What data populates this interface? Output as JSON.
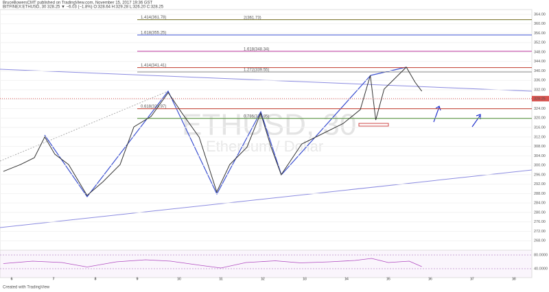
{
  "header": {
    "publisher": "BruceBowersCMT published on TradingView.com, November 15, 2017 19:36 GST",
    "symbol": "BITFINEX:ETHUSD, 30  328.25 ▼ −6.03 (−1.8%)  O:328.64 H:329.28 L:326.20 C:328.25",
    "watermark": "ETHUSD, 30",
    "watermark_sub": "Ethereum / Dollar"
  },
  "footer": "Created with TradingView",
  "chart_data": {
    "type": "line",
    "x": [
      5.8,
      6.21,
      6.54,
      6.79,
      7.03,
      7.36,
      7.8,
      8.18,
      8.59,
      8.92,
      9.33,
      9.74,
      10.07,
      10.48,
      10.9,
      11.21,
      11.62,
      11.95,
      12.2,
      12.44,
      12.93,
      13.43,
      13.92,
      14.33,
      14.57,
      14.7,
      14.9,
      15.23,
      15.43,
      15.64,
      15.8
    ],
    "series": [
      {
        "name": "ETHUSD",
        "color": "#333333",
        "values": [
          297.4,
          300.3,
          303.2,
          312,
          304.7,
          300.3,
          287.2,
          293,
          300.3,
          316.3,
          320.7,
          330.8,
          322.1,
          311.9,
          288.7,
          300.3,
          307.6,
          322.1,
          307.6,
          296,
          309,
          313.4,
          317.7,
          323.6,
          338.1,
          319.2,
          332.3,
          338.1,
          341.6,
          335.2,
          331.4
        ]
      }
    ],
    "xlim": [
      5.72,
      18.43
    ],
    "xticks": [
      6,
      7,
      8,
      9,
      10,
      11,
      12,
      13,
      14,
      15,
      16,
      17,
      18
    ],
    "ylim": [
      264,
      366
    ],
    "yticks": [
      {
        "value": 268,
        "label": "268.00"
      },
      {
        "value": 272,
        "label": "272.00"
      },
      {
        "value": 276,
        "label": "276.00"
      },
      {
        "value": 280,
        "label": "280.00"
      },
      {
        "value": 284,
        "label": "284.00"
      },
      {
        "value": 288,
        "label": "288.00"
      },
      {
        "value": 292,
        "label": "292.00"
      },
      {
        "value": 296,
        "label": "296.00"
      },
      {
        "value": 300,
        "label": "300.00"
      },
      {
        "value": 304,
        "label": "304.00"
      },
      {
        "value": 308,
        "label": "308.00"
      },
      {
        "value": 312,
        "label": "312.00"
      },
      {
        "value": 316,
        "label": "316.00"
      },
      {
        "value": 320,
        "label": "320.00"
      },
      {
        "value": 324,
        "label": "324.00"
      },
      {
        "value": 328,
        "label": "328.00"
      },
      {
        "value": 332,
        "label": "332.00"
      },
      {
        "value": 336,
        "label": "336.00"
      },
      {
        "value": 340,
        "label": "340.00"
      },
      {
        "value": 344,
        "label": "344.00"
      },
      {
        "value": 348,
        "label": "348.00"
      },
      {
        "value": 352,
        "label": "352.00"
      },
      {
        "value": 356,
        "label": "356.00"
      },
      {
        "value": 360,
        "label": "360.00"
      },
      {
        "value": 364,
        "label": "364.00"
      }
    ],
    "last_price": 328.25,
    "last_color": "#d9534f",
    "levels": [
      {
        "label": "1.414(361.78)",
        "value": 361.78,
        "color": "#c0392b"
      },
      {
        "label": "2(361.73)",
        "value": 361.73,
        "color": "#7a9a50"
      },
      {
        "label": "1.618(355.25)",
        "value": 355.25,
        "color": "#3a4fd0"
      },
      {
        "label": "1.618(348.34)",
        "value": 348.34,
        "color": "#c03aa0"
      },
      {
        "label": "1.414(341.41)",
        "value": 341.41,
        "color": "#c0392b"
      },
      {
        "label": "1.272(339.55)",
        "value": 339.55,
        "color": "#888888"
      },
      {
        "label": "0.618(323.97)",
        "value": 323.97,
        "color": "#c0392b"
      },
      {
        "label": "0.786(319.85)",
        "value": 319.85,
        "color": "#4a8a30"
      }
    ],
    "rsi": {
      "color": "#b04ac0",
      "x": [
        5.8,
        6.5,
        7.2,
        7.8,
        8.5,
        9.2,
        9.8,
        10.5,
        11.0,
        11.6,
        12.3,
        12.9,
        13.6,
        14.2,
        14.6,
        15.0,
        15.5,
        15.8
      ],
      "values": [
        55,
        62,
        58,
        45,
        60,
        66,
        62,
        50,
        42,
        58,
        63,
        57,
        60,
        64,
        70,
        58,
        62,
        46
      ],
      "ylim": [
        14,
        94
      ],
      "yticks": [
        {
          "value": 80,
          "label": "80.0000"
        },
        {
          "value": 40,
          "label": "40.0000"
        }
      ]
    }
  }
}
